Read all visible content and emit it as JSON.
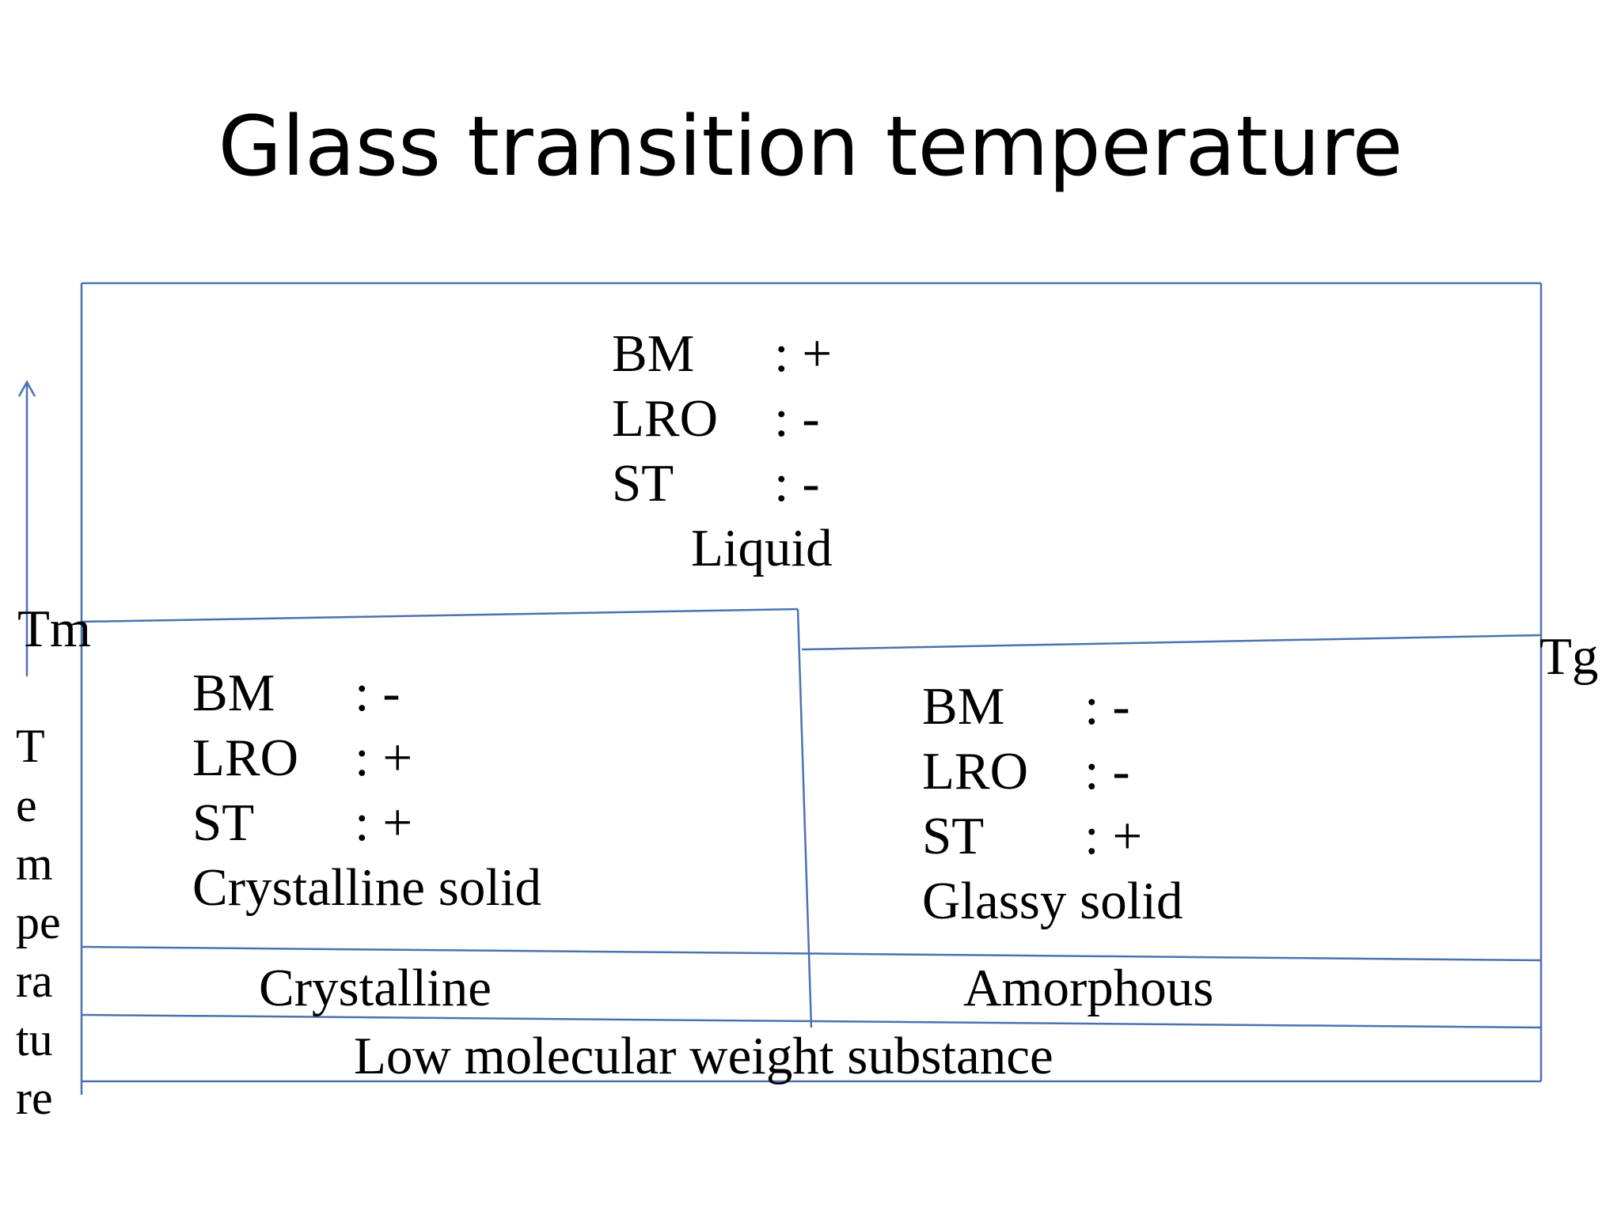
{
  "title": "Glass transition temperature",
  "colors": {
    "line": "#4a72b0",
    "text": "#000000"
  },
  "axis": {
    "label_fragments": [
      "T",
      "e",
      "m",
      "pe",
      "ra",
      "tu",
      "re"
    ],
    "tm_label": "Tm",
    "tg_label": "Tg"
  },
  "liquid": {
    "rows": [
      {
        "key": "BM",
        "value": ": +"
      },
      {
        "key": "LRO",
        "value": ": -"
      },
      {
        "key": "ST",
        "value": ": -"
      }
    ],
    "name": "Liquid"
  },
  "crystalline_solid": {
    "rows": [
      {
        "key": "BM",
        "value": ": -"
      },
      {
        "key": "LRO",
        "value": ": +"
      },
      {
        "key": "ST",
        "value": ": +"
      }
    ],
    "name": "Crystalline solid"
  },
  "glassy_solid": {
    "rows": [
      {
        "key": "BM",
        "value": ": -"
      },
      {
        "key": "LRO",
        "value": ": -"
      },
      {
        "key": "ST",
        "value": ": +"
      }
    ],
    "name": "Glassy solid"
  },
  "bands": {
    "crystalline": "Crystalline",
    "amorphous": "Amorphous",
    "substance": "Low molecular weight substance"
  }
}
